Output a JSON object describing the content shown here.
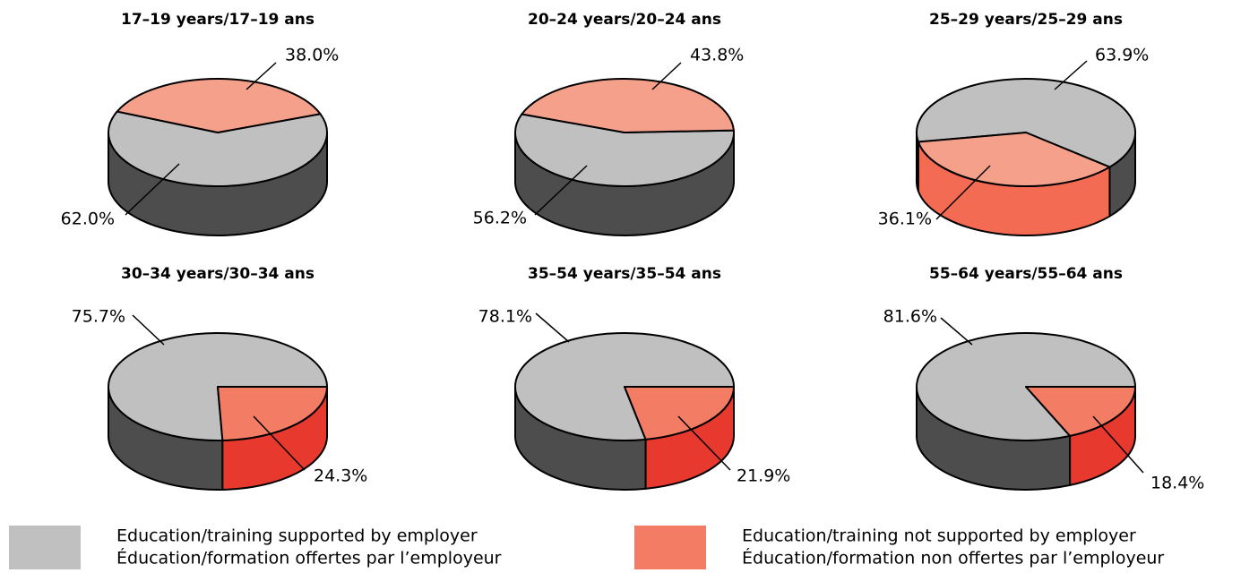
{
  "chart_data": [
    {
      "type": "pie",
      "title": "17–19 years/17–19 ans",
      "values": [
        62.0,
        38.0
      ],
      "value_labels": [
        "62.0%",
        "38.0%"
      ],
      "colors": [
        "#c0c0c0",
        "#f5a08a"
      ],
      "side_colors": [
        "#4d4d4d",
        "#f26b52"
      ]
    },
    {
      "type": "pie",
      "title": "20–24 years/20–24 ans",
      "values": [
        56.2,
        43.8
      ],
      "value_labels": [
        "56.2%",
        "43.8%"
      ],
      "colors": [
        "#c0c0c0",
        "#f5a08a"
      ],
      "side_colors": [
        "#4d4d4d",
        "#f26b52"
      ]
    },
    {
      "type": "pie",
      "title": "25–29 years/25–29 ans",
      "values": [
        63.9,
        36.1
      ],
      "value_labels": [
        "63.9%",
        "36.1%"
      ],
      "colors": [
        "#c0c0c0",
        "#f5a08a"
      ],
      "side_colors": [
        "#4d4d4d",
        "#f26b52"
      ]
    },
    {
      "type": "pie",
      "title": "30–34 years/30–34 ans",
      "values": [
        75.7,
        24.3
      ],
      "value_labels": [
        "75.7%",
        "24.3%"
      ],
      "colors": [
        "#c0c0c0",
        "#f27c64"
      ],
      "side_colors": [
        "#4d4d4d",
        "#e8392f"
      ]
    },
    {
      "type": "pie",
      "title": "35–54 years/35–54 ans",
      "values": [
        78.1,
        21.9
      ],
      "value_labels": [
        "78.1%",
        "21.9%"
      ],
      "colors": [
        "#c0c0c0",
        "#f27c64"
      ],
      "side_colors": [
        "#4d4d4d",
        "#e8392f"
      ]
    },
    {
      "type": "pie",
      "title": "55–64 years/55–64 ans",
      "values": [
        81.6,
        18.4
      ],
      "value_labels": [
        "81.6%",
        "18.4%"
      ],
      "colors": [
        "#c0c0c0",
        "#f27c64"
      ],
      "side_colors": [
        "#4d4d4d",
        "#e8392f"
      ]
    }
  ],
  "legend": [
    {
      "color": "#c0c0c0",
      "labels": [
        "Education/training supported by employer",
        "Éducation/formation offertes par l’employeur"
      ]
    },
    {
      "color": "#f27c64",
      "labels": [
        "Education/training not supported by employer",
        "Éducation/formation non offertes par l’employeur"
      ]
    }
  ]
}
